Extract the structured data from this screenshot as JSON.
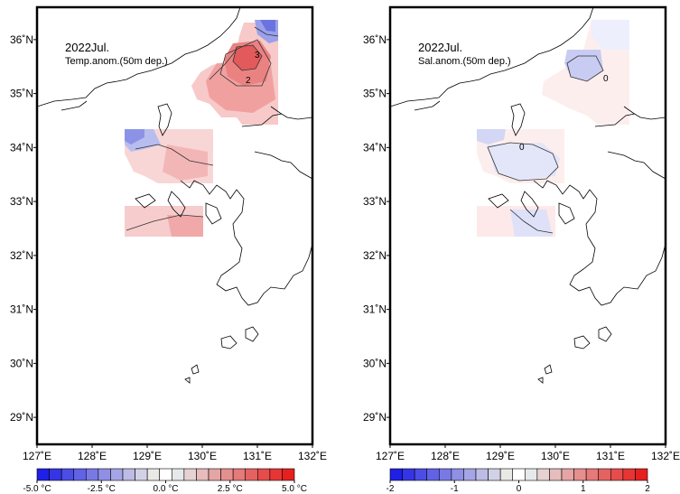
{
  "panels": [
    {
      "id": "temp",
      "title": "2022Jul.",
      "subtitle": "Temp.anom.(50m dep.)",
      "contour_labels": [
        "3",
        "2"
      ],
      "colorbar_labels": [
        "-5.0 °C",
        "-2.5 °C",
        "0.0 °C",
        "2.5 °C",
        "5.0 °C"
      ],
      "colorbar_range": [
        -5,
        5
      ]
    },
    {
      "id": "sal",
      "title": "2022Jul.",
      "subtitle": "Sal.anom.(50m dep.)",
      "contour_labels": [
        "0",
        "0"
      ],
      "colorbar_labels": [
        "-2",
        "-1",
        "0",
        "1",
        "2"
      ],
      "colorbar_range": [
        -2,
        2
      ]
    }
  ],
  "axes": {
    "lon_labels": [
      "127˚E",
      "128˚E",
      "129˚E",
      "130˚E",
      "131˚E",
      "132˚E"
    ],
    "lat_labels": [
      "36˚N",
      "35˚N",
      "34˚N",
      "33˚N",
      "32˚N",
      "31˚N",
      "30˚N",
      "29˚N"
    ],
    "lon_range": [
      127,
      132
    ],
    "lat_range": [
      28.5,
      36.6
    ]
  },
  "colors": {
    "negative_max": "#1f1fe6",
    "neutral": "#ffffff",
    "positive_max": "#e61f1f",
    "frame": "#000000",
    "coastline": "#000000"
  }
}
